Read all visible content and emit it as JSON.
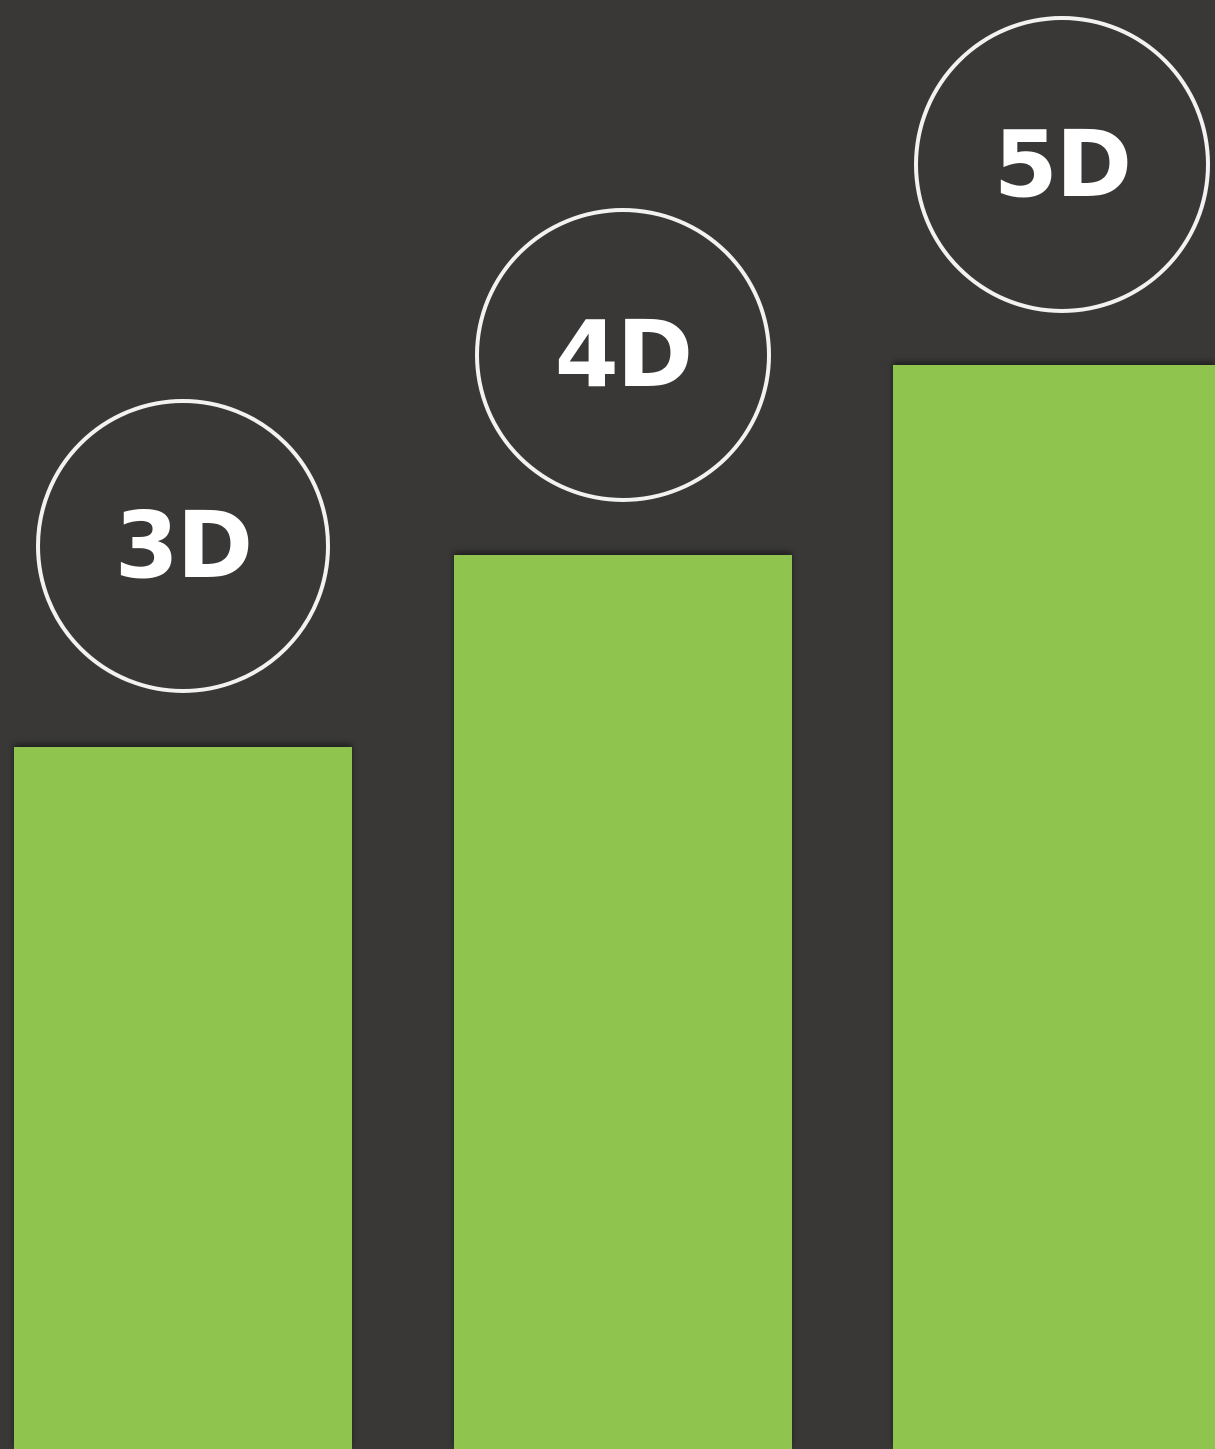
{
  "steps": [
    {
      "label": "3D"
    },
    {
      "label": "4D"
    },
    {
      "label": "5D"
    }
  ],
  "colors": {
    "background": "#393837",
    "bar": "#8fc44e",
    "circle_border": "#f2f2f2",
    "label_text": "#ffffff"
  }
}
